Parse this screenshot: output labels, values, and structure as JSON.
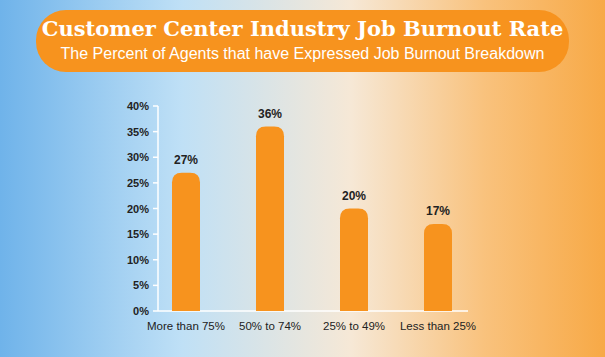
{
  "chart_data": {
    "type": "bar",
    "title": "Customer Center Industry Job Burnout Rate",
    "subtitle": "The Percent of Agents that have Expressed Job Burnout Breakdown",
    "categories": [
      "More than 75%",
      "50% to 74%",
      "25% to 49%",
      "Less than 25%"
    ],
    "values": [
      27,
      36,
      20,
      17
    ],
    "value_labels": [
      "27%",
      "36%",
      "20%",
      "17%"
    ],
    "color": "#f7931e",
    "ylim": [
      0,
      40
    ],
    "yticks": [
      {
        "value": 0,
        "label": "0%"
      },
      {
        "value": 5,
        "label": "5%"
      },
      {
        "value": 10,
        "label": "10%"
      },
      {
        "value": 15,
        "label": "15%"
      },
      {
        "value": 20,
        "label": "20%"
      },
      {
        "value": 25,
        "label": "25%"
      },
      {
        "value": 30,
        "label": "30%"
      },
      {
        "value": 35,
        "label": "35%"
      },
      {
        "value": 40,
        "label": "40%"
      }
    ],
    "grid": false,
    "data_labels": true
  }
}
